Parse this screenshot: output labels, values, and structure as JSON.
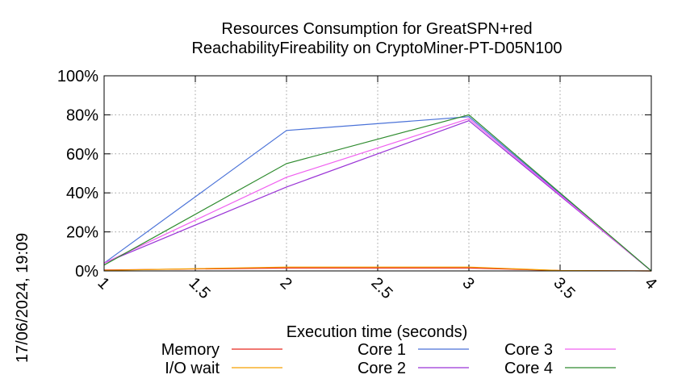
{
  "chart_data": {
    "type": "line",
    "title": [
      "Resources Consumption for GreatSPN+red",
      "ReachabilityFireability on CryptoMiner-PT-D05N100"
    ],
    "xlabel": "Execution time (seconds)",
    "ylabel": "",
    "xlim": [
      1,
      4
    ],
    "ylim": [
      0,
      100
    ],
    "x_ticks": [
      "1",
      "1.5",
      "2",
      "2.5",
      "3",
      "3.5",
      "4"
    ],
    "y_ticks": [
      "0%",
      "20%",
      "40%",
      "60%",
      "80%",
      "100%"
    ],
    "grid": true,
    "legend_position": "bottom",
    "timestamp": "17/06/2024, 19:09",
    "series": [
      {
        "name": "Memory",
        "color": "#e8281e",
        "x": [
          1,
          2,
          3,
          3.5,
          4
        ],
        "y": [
          0.5,
          1.5,
          1.5,
          0.2,
          0
        ]
      },
      {
        "name": "I/O wait",
        "color": "#f5a000",
        "x": [
          1,
          2,
          3,
          3.5,
          4
        ],
        "y": [
          0.3,
          2,
          2,
          0.2,
          0
        ]
      },
      {
        "name": "Core 1",
        "color": "#4a72d8",
        "x": [
          1,
          2,
          3,
          4
        ],
        "y": [
          4,
          72,
          79,
          0
        ]
      },
      {
        "name": "Core 2",
        "color": "#9a34d6",
        "x": [
          1,
          2,
          3,
          4
        ],
        "y": [
          4,
          43,
          77,
          0
        ]
      },
      {
        "name": "Core 3",
        "color": "#f060f0",
        "x": [
          1,
          2,
          3,
          4
        ],
        "y": [
          4,
          48,
          78,
          0
        ]
      },
      {
        "name": "Core 4",
        "color": "#2e8b2e",
        "x": [
          1,
          2,
          3,
          4
        ],
        "y": [
          3,
          55,
          80,
          0
        ]
      }
    ]
  }
}
